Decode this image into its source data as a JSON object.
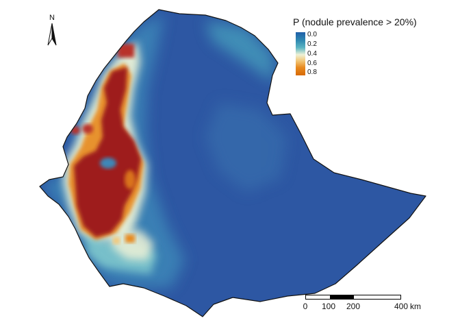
{
  "legend": {
    "title": "P (nodule prevalence > 20%)",
    "ticks": [
      "0.0",
      "0.2",
      "0.4",
      "0.6",
      "0.8"
    ]
  },
  "north_arrow": {
    "label": "N"
  },
  "scale_bar": {
    "labels": [
      "0",
      "100",
      "200",
      "400",
      "km"
    ]
  },
  "colors": {
    "low": "#2a4f9c",
    "mid_low": "#3f8fba",
    "mid": "#eef1d6",
    "high": "#e8891e",
    "very_high": "#9e1a1f"
  }
}
